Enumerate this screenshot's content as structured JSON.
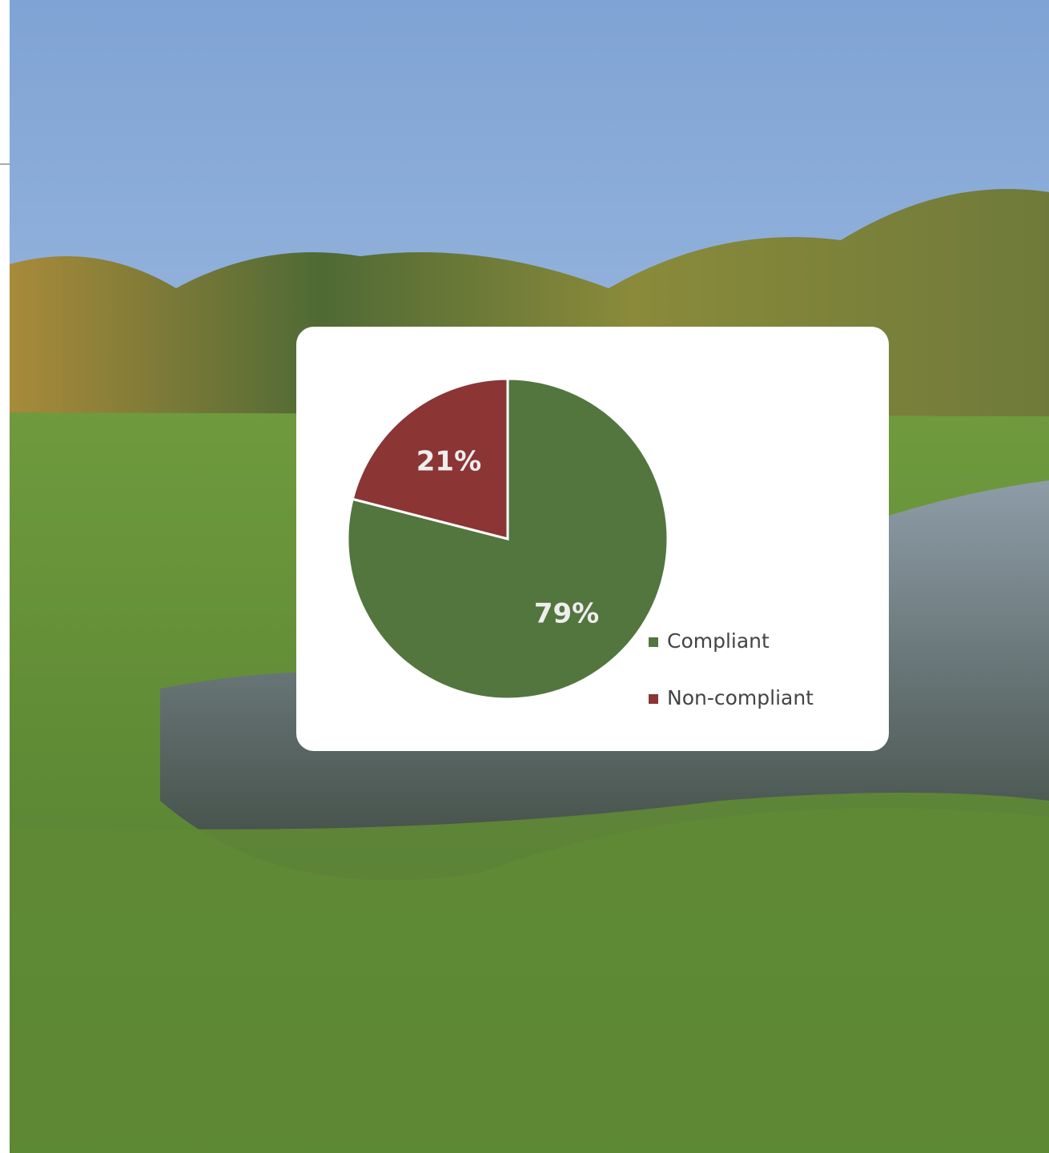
{
  "chart_data": {
    "type": "pie",
    "categories": [
      "Compliant",
      "Non-compliant"
    ],
    "values": [
      79,
      21
    ],
    "value_labels": [
      "79%",
      "21%"
    ],
    "colors": [
      "#53763f",
      "#8b3535"
    ]
  }
}
